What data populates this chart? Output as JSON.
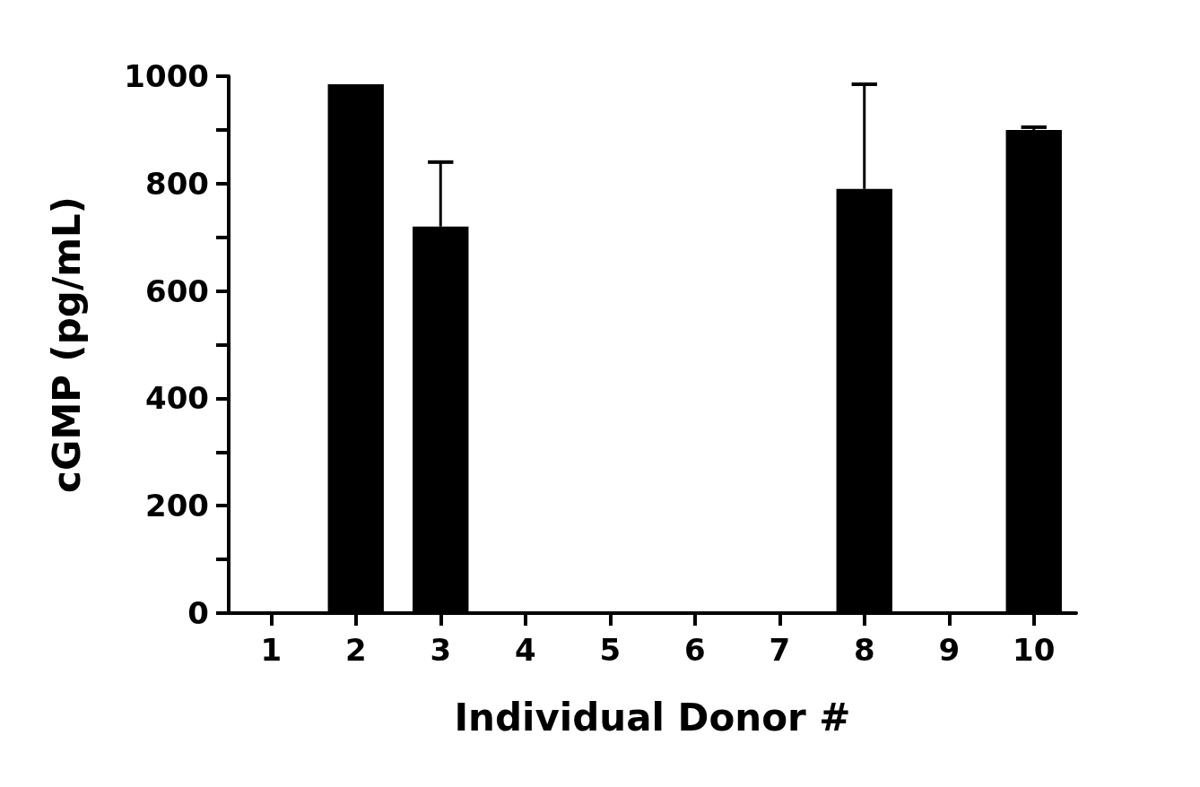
{
  "chart_data": {
    "type": "bar",
    "xlabel": "Individual Donor #",
    "ylabel": "cGMP (pg/mL)",
    "categories": [
      "1",
      "2",
      "3",
      "4",
      "5",
      "6",
      "7",
      "8",
      "9",
      "10"
    ],
    "values": [
      0,
      985,
      720,
      0,
      0,
      0,
      0,
      790,
      0,
      900
    ],
    "errors": [
      null,
      null,
      [
        720,
        840
      ],
      null,
      null,
      null,
      null,
      [
        790,
        985
      ],
      null,
      [
        900,
        905
      ]
    ],
    "color": "#000000",
    "ylim": [
      0,
      1000
    ],
    "yticks": [
      0,
      {
        "value": 100,
        "label": null
      },
      200,
      {
        "value": 300,
        "label": null
      },
      400,
      {
        "value": 500,
        "label": null
      },
      600,
      {
        "value": 700,
        "label": null
      },
      800,
      {
        "value": 900,
        "label": null
      },
      1000
    ],
    "grid": false
  }
}
